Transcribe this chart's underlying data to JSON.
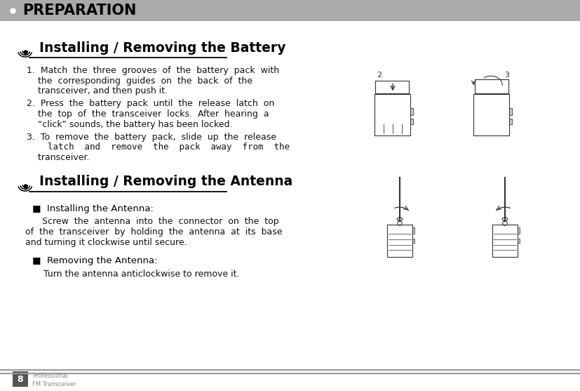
{
  "bg_color": "#ffffff",
  "header_bg": "#aaaaaa",
  "header_text": "PREPARATION",
  "header_text_color": "#000000",
  "header_bullet_color": "#ffffff",
  "footer_num": "8",
  "footer_num_bg": "#555555",
  "footer_num_color": "#ffffff",
  "footer_line1": "Professional",
  "footer_line2": "FM Transceiver",
  "footer_text_color": "#888888",
  "section1_title": "Installing / Removing the Battery",
  "section2_title": "Installing / Removing the Antenna",
  "body_text_color": "#111111",
  "body_font_size": 9.0,
  "title_font_size": 13.5,
  "step1_line1": "1.  Match  the  three  grooves  of  the  battery  pack  with",
  "step1_line2": "    the  corresponding  guides  on  the  back  of  the",
  "step1_line3": "    transceiver, and then push it.",
  "step2_line1": "2.  Press  the  battery  pack  until  the  release  latch  on",
  "step2_line2": "    the  top  of  the  transceiver  locks.  After  hearing  a",
  "step2_line3": "    “click” sounds, the battery has been locked.",
  "step3_line1": "3.  To  remove  the  battery  pack,  slide  up  the  release",
  "step3_line2": "    latch  and  remove  the  pack  away  from  the",
  "step3_line3": "    transceiver.",
  "install_label": "■  Installing the Antenna:",
  "install_body1": "      Screw  the  antenna  into  the  connector  on  the  top",
  "install_body2": "of  the  transceiver  by  holding  the  antenna  at  its  base",
  "install_body3": "and turning it clockwise until secure.",
  "remove_label": "■  Removing the Antenna:",
  "remove_body": "    Turn the antenna anticlockwise to remove it."
}
